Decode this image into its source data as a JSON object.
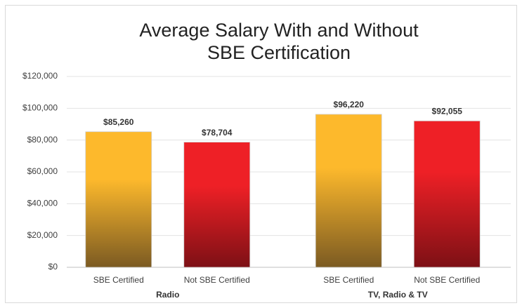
{
  "chart_data": {
    "type": "bar",
    "title": [
      "Average Salary With and Without",
      "SBE Certification"
    ],
    "groups": [
      {
        "name": "Radio",
        "categories": [
          "SBE Certified",
          "Not SBE Certified"
        ],
        "values": [
          85260,
          78704
        ],
        "value_labels": [
          "$85,260",
          "$78,704"
        ]
      },
      {
        "name": "TV, Radio & TV",
        "categories": [
          "SBE Certified",
          "Not SBE Certified"
        ],
        "values": [
          96220,
          92055
        ],
        "value_labels": [
          "$96,220",
          "$92,055"
        ]
      }
    ],
    "bar_colors": [
      [
        "#fdb92c",
        "#7b5a22"
      ],
      [
        "#ee2026",
        "#7d1015"
      ]
    ],
    "ylim": [
      0,
      120000
    ],
    "yticks": [
      {
        "value": 0,
        "label": "$0"
      },
      {
        "value": 20000,
        "label": "$20,000"
      },
      {
        "value": 40000,
        "label": "$40,000"
      },
      {
        "value": 60000,
        "label": "$60,000"
      },
      {
        "value": 80000,
        "label": "$80,000"
      },
      {
        "value": 100000,
        "label": "$100,000"
      },
      {
        "value": 120000,
        "label": "$120,000"
      }
    ],
    "grid": true
  }
}
